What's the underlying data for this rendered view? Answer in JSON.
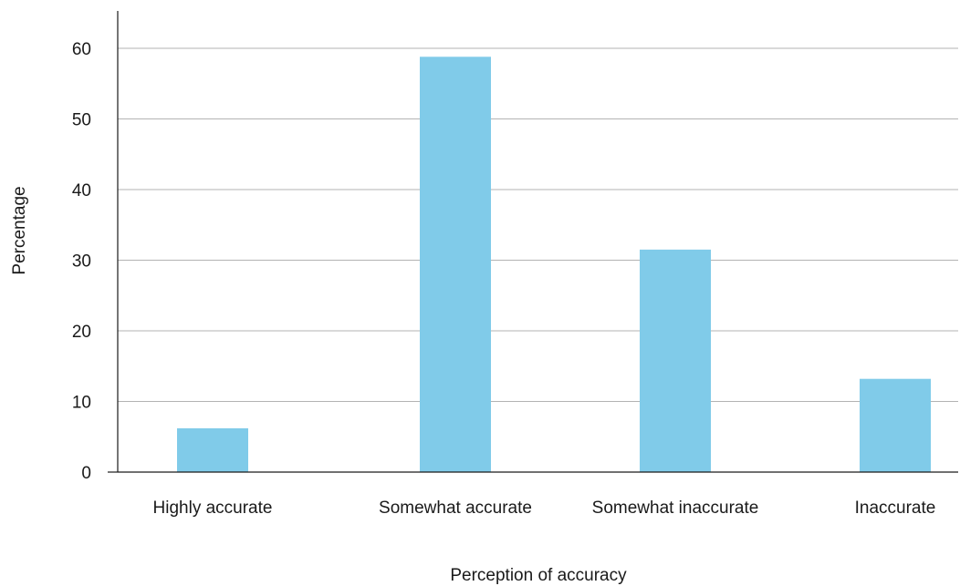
{
  "chart_data": {
    "type": "bar",
    "categories": [
      "Highly accurate",
      "Somewhat accurate",
      "Somewhat inaccurate",
      "Inaccurate"
    ],
    "values": [
      6.2,
      58.8,
      31.5,
      13.2
    ],
    "title": "",
    "xlabel": "Perception of accuracy",
    "ylabel": "Percentage",
    "ylim": [
      0,
      65
    ],
    "yticks": [
      0,
      10,
      20,
      30,
      40,
      50,
      60
    ],
    "grid": true,
    "legend": "none",
    "bar_color": "#80cbe9"
  }
}
